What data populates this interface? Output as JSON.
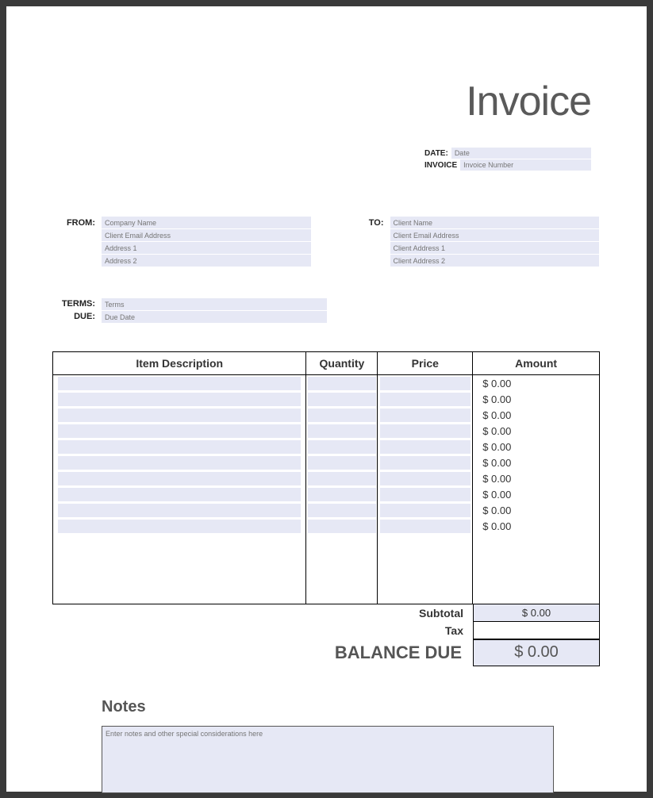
{
  "title": "Invoice",
  "meta": {
    "date_label": "DATE:",
    "date_placeholder": "Date",
    "invoice_label": "INVOICE",
    "invoice_placeholder": "Invoice Number"
  },
  "from": {
    "label": "FROM:",
    "company_placeholder": "Company Name",
    "email_placeholder": "Client Email Address",
    "addr1_placeholder": "Address 1",
    "addr2_placeholder": "Address 2"
  },
  "to": {
    "label": "TO:",
    "name_placeholder": "Client Name",
    "email_placeholder": "Client Email Address",
    "addr1_placeholder": "Client Address 1",
    "addr2_placeholder": "Client Address 2"
  },
  "terms": {
    "terms_label": "TERMS:",
    "due_label": "DUE:",
    "terms_placeholder": "Terms",
    "due_placeholder": "Due Date"
  },
  "table": {
    "headers": {
      "desc": "Item Description",
      "qty": "Quantity",
      "price": "Price",
      "amount": "Amount"
    },
    "amounts": [
      "$ 0.00",
      "$ 0.00",
      "$ 0.00",
      "$ 0.00",
      "$ 0.00",
      "$ 0.00",
      "$ 0.00",
      "$ 0.00",
      "$ 0.00",
      "$ 0.00"
    ],
    "row_count": 10,
    "colors": {
      "row_bg": "#e6e8f5",
      "border": "#000000"
    }
  },
  "totals": {
    "subtotal_label": "Subtotal",
    "subtotal_value": "$ 0.00",
    "tax_label": "Tax",
    "tax_value": "",
    "balance_label": "BALANCE DUE",
    "balance_value": "$ 0.00"
  },
  "notes": {
    "title": "Notes",
    "placeholder": "Enter notes and other special considerations here"
  },
  "styling": {
    "page_bg": "#ffffff",
    "outer_bg": "#3a3a3a",
    "field_bg": "#e6e8f5",
    "title_color": "#5a5a5a",
    "text_color": "#333333",
    "placeholder_color": "#888888",
    "title_fontsize": 52,
    "header_fontsize": 14,
    "label_fontsize": 11,
    "field_fontsize": 9
  }
}
